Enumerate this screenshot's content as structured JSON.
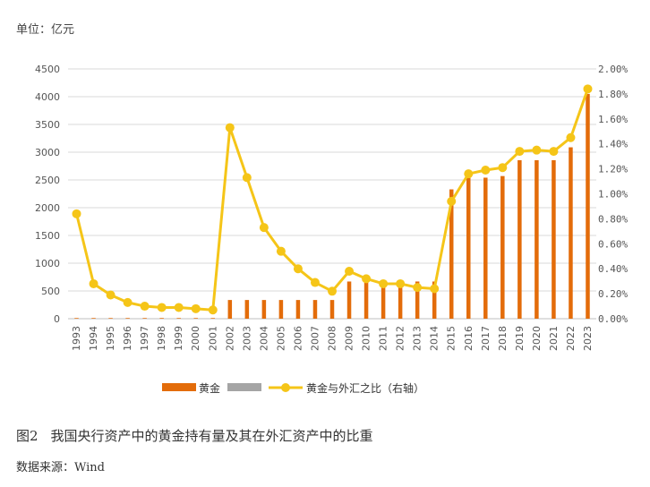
{
  "unit_label": "单位：亿元",
  "caption": {
    "fig_no": "图2",
    "text": "我国央行资产中的黄金持有量及其在外汇资产中的比重"
  },
  "source": "数据来源：Wind",
  "colors": {
    "gold_bar": "#E36C0A",
    "gray_bar": "#A5A5A5",
    "ratio_line": "#F5C518",
    "grid": "#D9D9D9"
  },
  "chart_data": {
    "type": "bar+line",
    "categories": [
      "1993",
      "1994",
      "1995",
      "1996",
      "1997",
      "1998",
      "1999",
      "2000",
      "2001",
      "2002",
      "2003",
      "2004",
      "2005",
      "2006",
      "2007",
      "2008",
      "2009",
      "2010",
      "2011",
      "2012",
      "2013",
      "2014",
      "2015",
      "2016",
      "2017",
      "2018",
      "2019",
      "2020",
      "2021",
      "2022",
      "2023"
    ],
    "left_axis": {
      "ylim": [
        0,
        4500
      ],
      "ticks": [
        "0",
        "500",
        "1000",
        "1500",
        "2000",
        "2500",
        "3000",
        "3500",
        "4000",
        "4500"
      ]
    },
    "right_axis": {
      "ylim": [
        0,
        2.0
      ],
      "ticks": [
        "0.00%",
        "0.20%",
        "0.40%",
        "0.60%",
        "0.80%",
        "1.00%",
        "1.20%",
        "1.40%",
        "1.60%",
        "1.80%",
        "2.00%"
      ]
    },
    "series": [
      {
        "name": "黄金",
        "kind": "bar",
        "axis": "left",
        "values": [
          12,
          12,
          12,
          12,
          12,
          12,
          12,
          12,
          12,
          337,
          337,
          337,
          337,
          337,
          337,
          337,
          670,
          670,
          670,
          670,
          670,
          670,
          2330,
          2541,
          2541,
          2570,
          2856,
          2856,
          2856,
          3088,
          4050
        ]
      },
      {
        "name": "",
        "kind": "bar",
        "axis": "left",
        "values": [
          0,
          0,
          0,
          0,
          0,
          0,
          0,
          0,
          0,
          0,
          0,
          0,
          0,
          0,
          0,
          0,
          0,
          0,
          0,
          0,
          0,
          0,
          0,
          0,
          0,
          0,
          0,
          0,
          0,
          0,
          0
        ]
      },
      {
        "name": "黄金与外汇之比（右轴）",
        "kind": "line",
        "axis": "right",
        "values": [
          0.84,
          0.28,
          0.19,
          0.13,
          0.1,
          0.09,
          0.09,
          0.08,
          0.07,
          1.53,
          1.13,
          0.73,
          0.54,
          0.4,
          0.29,
          0.22,
          0.38,
          0.32,
          0.28,
          0.28,
          0.25,
          0.24,
          0.94,
          1.16,
          1.19,
          1.21,
          1.34,
          1.35,
          1.34,
          1.45,
          1.84
        ]
      }
    ],
    "legend": [
      "黄金",
      "",
      "黄金与外汇之比（右轴）"
    ],
    "legend_position": "bottom",
    "grid": true
  }
}
